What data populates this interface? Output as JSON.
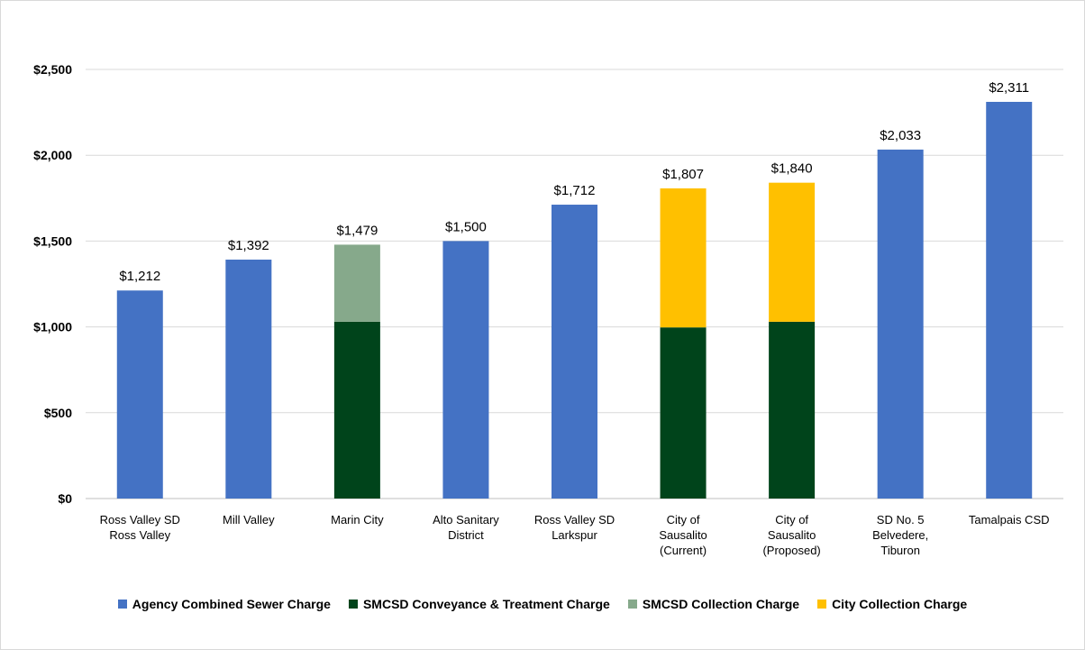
{
  "chart_data": {
    "type": "bar",
    "stacked": true,
    "categories": [
      [
        "Ross Valley SD",
        "Ross Valley"
      ],
      [
        "Mill Valley"
      ],
      [
        "Marin City"
      ],
      [
        "Alto Sanitary",
        "District"
      ],
      [
        "Ross Valley SD",
        "Larkspur"
      ],
      [
        "City of",
        "Sausalito",
        "(Current)"
      ],
      [
        "City of",
        "Sausalito",
        "(Proposed)"
      ],
      [
        "SD No. 5",
        "Belvedere,",
        "Tiburon"
      ],
      [
        "Tamalpais CSD"
      ]
    ],
    "series": [
      {
        "name": "Agency Combined Sewer Charge",
        "color": "#4472c4",
        "values": [
          1212,
          1392,
          0,
          1500,
          1712,
          0,
          0,
          2033,
          2311
        ]
      },
      {
        "name": "SMCSD Conveyance & Treatment Charge",
        "color": "#00441b",
        "values": [
          0,
          0,
          1030,
          0,
          0,
          997,
          1030,
          0,
          0
        ]
      },
      {
        "name": "SMCSD Collection Charge",
        "color": "#86a98b",
        "values": [
          0,
          0,
          449,
          0,
          0,
          0,
          0,
          0,
          0
        ]
      },
      {
        "name": "City Collection Charge",
        "color": "#ffc000",
        "values": [
          0,
          0,
          0,
          0,
          0,
          810,
          810,
          0,
          0
        ]
      }
    ],
    "totals": [
      "$1,212",
      "$1,392",
      "$1,479",
      "$1,500",
      "$1,712",
      "$1,807",
      "$1,840",
      "$2,033",
      "$2,311"
    ],
    "y_ticks": [
      "$0",
      "$500",
      "$1,000",
      "$1,500",
      "$2,000",
      "$2,500"
    ],
    "ylim": [
      0,
      2500
    ],
    "grid": true,
    "legend_position": "bottom"
  }
}
